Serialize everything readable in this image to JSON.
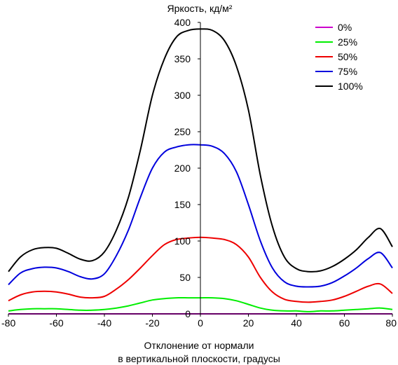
{
  "chart_data": {
    "type": "line",
    "ylabel": "Яркость, кд/м²",
    "xlabel_line1": "Отклонение от нормали",
    "xlabel_line2": "в вертикальной плоскости, градусы",
    "xlim": [
      -80,
      80
    ],
    "ylim": [
      0,
      400
    ],
    "xticks": [
      -80,
      -60,
      -40,
      -20,
      0,
      20,
      40,
      60,
      80
    ],
    "yticks": [
      0,
      50,
      100,
      150,
      200,
      250,
      300,
      350,
      400
    ],
    "grid": false,
    "legend_position": "top-right",
    "x": [
      -80,
      -75,
      -70,
      -65,
      -60,
      -55,
      -50,
      -45,
      -40,
      -35,
      -30,
      -25,
      -20,
      -15,
      -10,
      -5,
      0,
      5,
      10,
      15,
      20,
      25,
      30,
      35,
      40,
      45,
      50,
      55,
      60,
      65,
      70,
      75,
      80
    ],
    "series": [
      {
        "name": "0%",
        "color": "#cc00cc",
        "values": [
          0,
          0,
          0,
          0,
          0,
          0,
          0,
          0,
          0,
          0,
          0,
          0,
          0,
          0,
          0,
          0,
          0,
          0,
          0,
          0,
          0,
          0,
          0,
          0,
          0,
          0,
          0,
          0,
          0,
          0,
          0,
          0,
          0
        ]
      },
      {
        "name": "25%",
        "color": "#00ee00",
        "values": [
          4,
          6,
          7,
          7,
          7,
          6,
          5,
          5,
          6,
          8,
          11,
          15,
          19,
          21,
          22,
          22,
          22,
          22,
          21,
          18,
          13,
          8,
          5,
          4,
          4,
          3,
          4,
          4,
          5,
          6,
          7,
          8,
          6
        ]
      },
      {
        "name": "50%",
        "color": "#ee0000",
        "values": [
          18,
          26,
          30,
          31,
          30,
          27,
          23,
          22,
          24,
          34,
          47,
          63,
          80,
          95,
          102,
          104,
          105,
          104,
          102,
          95,
          78,
          50,
          30,
          20,
          17,
          16,
          17,
          19,
          24,
          31,
          38,
          41,
          28
        ]
      },
      {
        "name": "75%",
        "color": "#0000dd",
        "values": [
          40,
          56,
          62,
          64,
          63,
          58,
          51,
          48,
          55,
          80,
          115,
          160,
          200,
          222,
          229,
          232,
          232,
          230,
          220,
          195,
          150,
          100,
          63,
          44,
          38,
          37,
          38,
          43,
          52,
          63,
          76,
          84,
          63
        ]
      },
      {
        "name": "100%",
        "color": "#000000",
        "values": [
          58,
          78,
          88,
          91,
          90,
          83,
          75,
          73,
          85,
          115,
          160,
          225,
          300,
          350,
          380,
          389,
          391,
          389,
          375,
          340,
          280,
          190,
          120,
          78,
          62,
          58,
          59,
          65,
          75,
          88,
          105,
          117,
          92
        ]
      }
    ]
  }
}
